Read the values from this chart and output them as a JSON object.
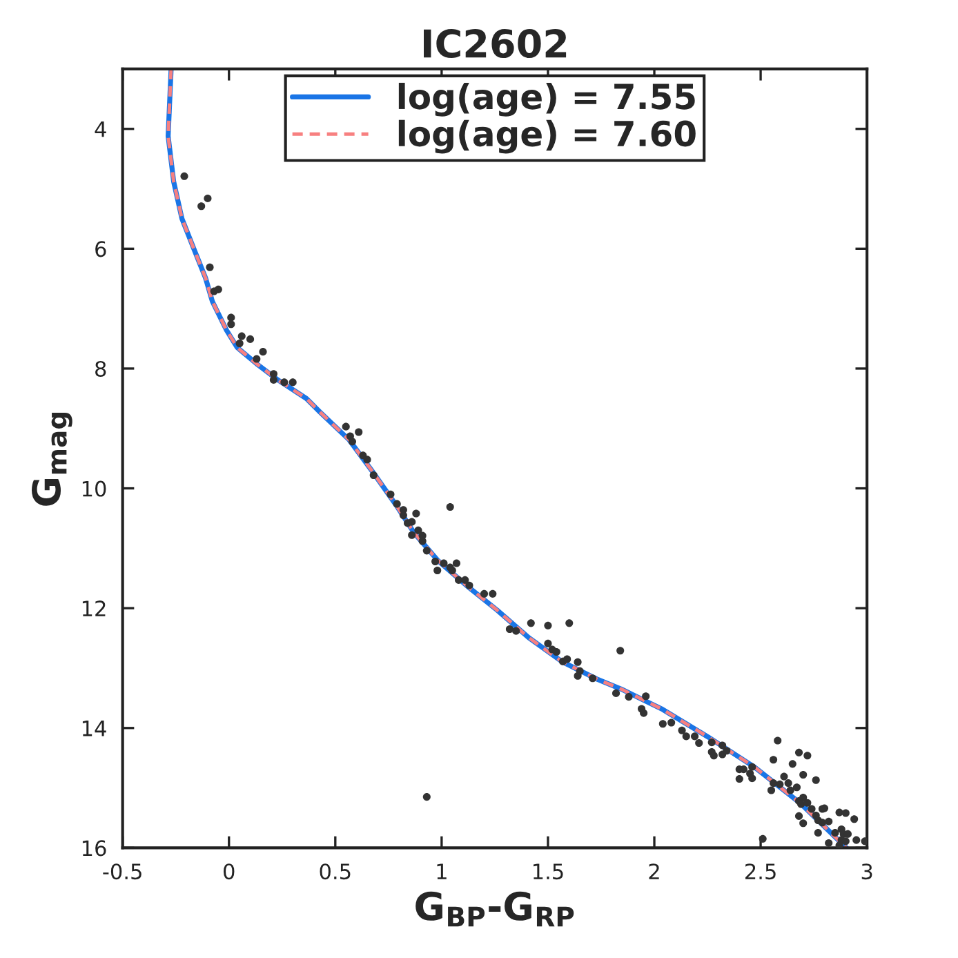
{
  "chart_data": {
    "type": "scatter",
    "title": "IC2602",
    "xlabel": "G$_{BP}$-G$_{RP}$",
    "ylabel": "G$_{mag}$",
    "xlim": [
      -0.5,
      3
    ],
    "ylim": [
      16,
      3
    ],
    "xticks": [
      {
        "value": -0.5,
        "label": "-0.5"
      },
      0,
      0.5,
      1,
      1.5,
      2,
      2.5,
      3
    ],
    "yticks": [
      4,
      6,
      8,
      10,
      12,
      14,
      16
    ],
    "grid": false,
    "legend": "top",
    "series": [
      {
        "color": "#333333",
        "marker": "circle",
        "x": [
          -0.21,
          -0.13,
          -0.1,
          -0.09,
          -0.07,
          -0.05,
          0.01,
          0.01,
          0.06,
          0.1,
          0.05,
          0.13,
          0.16,
          0.21,
          0.21,
          0.26,
          0.3,
          0.55,
          0.61,
          0.57,
          0.58,
          0.63,
          0.65,
          0.68,
          0.76,
          0.79,
          0.82,
          0.88,
          0.82,
          0.86,
          0.84,
          0.89,
          0.91,
          0.86,
          0.91,
          1.04,
          0.93,
          0.97,
          1.01,
          1.07,
          0.98,
          1.05,
          1.04,
          1.08,
          1.11,
          1.13,
          1.2,
          1.24,
          1.32,
          1.35,
          1.42,
          1.5,
          1.6,
          1.5,
          1.52,
          1.54,
          1.57,
          1.59,
          1.64,
          1.65,
          1.64,
          1.71,
          1.84,
          1.82,
          1.88,
          1.96,
          1.94,
          1.95,
          2.04,
          2.08,
          2.13,
          2.15,
          2.19,
          2.21,
          2.27,
          2.32,
          2.27,
          2.28,
          2.32,
          2.34,
          2.4,
          2.42,
          2.4,
          2.46,
          2.45,
          2.46,
          2.58,
          2.56,
          2.56,
          2.59,
          2.55,
          2.61,
          2.63,
          2.65,
          2.68,
          2.72,
          2.7,
          2.64,
          2.67,
          2.76,
          2.7,
          2.68,
          2.69,
          2.72,
          2.68,
          2.7,
          2.74,
          2.76,
          2.79,
          2.8,
          2.77,
          2.79,
          2.82,
          2.77,
          2.82,
          2.87,
          2.9,
          2.94,
          2.85,
          2.88,
          2.89,
          2.91,
          2.88,
          2.9,
          2.95,
          2.99,
          2.51,
          2.87,
          0.93
        ],
        "values": [
          4.79,
          5.29,
          5.16,
          6.31,
          6.71,
          6.68,
          7.15,
          7.26,
          7.46,
          7.51,
          7.58,
          7.84,
          7.72,
          8.09,
          8.19,
          8.23,
          8.23,
          8.97,
          9.06,
          9.13,
          9.22,
          9.45,
          9.52,
          9.78,
          10.1,
          10.26,
          10.36,
          10.42,
          10.45,
          10.56,
          10.58,
          10.7,
          10.79,
          10.78,
          10.88,
          10.31,
          11.04,
          11.22,
          11.25,
          11.25,
          11.37,
          11.37,
          11.32,
          11.53,
          11.53,
          11.62,
          11.76,
          11.76,
          12.35,
          12.38,
          12.25,
          12.29,
          12.25,
          12.59,
          12.69,
          12.73,
          12.89,
          12.85,
          12.9,
          13.05,
          13.13,
          13.17,
          12.71,
          13.42,
          13.48,
          13.47,
          13.68,
          13.75,
          13.93,
          13.91,
          14.04,
          14.14,
          14.14,
          14.25,
          14.24,
          14.29,
          14.4,
          14.46,
          14.44,
          14.38,
          14.69,
          14.69,
          14.85,
          14.65,
          14.76,
          14.84,
          14.21,
          14.53,
          14.92,
          14.94,
          15.04,
          14.81,
          14.92,
          14.6,
          14.41,
          14.46,
          14.78,
          15.04,
          14.99,
          14.87,
          15.16,
          15.22,
          15.27,
          15.25,
          15.47,
          15.59,
          15.35,
          15.46,
          15.35,
          15.34,
          15.54,
          15.58,
          15.56,
          15.75,
          15.92,
          15.41,
          15.42,
          15.52,
          15.75,
          15.69,
          15.77,
          15.77,
          15.87,
          15.89,
          15.87,
          15.89,
          15.85,
          15.96,
          15.15
        ]
      },
      {
        "type": "line",
        "name": "log(age) = 7.55",
        "color": "#1a75e6",
        "line_style": "solid",
        "marker": "none",
        "x": [
          -0.272,
          -0.286,
          -0.26,
          -0.221,
          -0.162,
          -0.11,
          -0.078,
          -0.013,
          0.039,
          0.13,
          0.234,
          0.364,
          0.429,
          0.565,
          0.675,
          0.786,
          0.87,
          0.981,
          1.13,
          1.26,
          1.409,
          1.565,
          1.734,
          1.844,
          2.039,
          2.253,
          2.474,
          2.688,
          2.903
        ],
        "values": [
          3.0,
          4.12,
          4.88,
          5.5,
          6.03,
          6.49,
          6.88,
          7.35,
          7.65,
          7.92,
          8.2,
          8.5,
          8.73,
          9.19,
          9.72,
          10.28,
          10.74,
          11.2,
          11.66,
          12.03,
          12.49,
          12.89,
          13.19,
          13.35,
          13.69,
          14.15,
          14.66,
          15.26,
          16.0
        ]
      },
      {
        "type": "line",
        "name": "log(age) = 7.60",
        "color": "#f78080",
        "line_style": "dashed",
        "marker": "none",
        "x": [
          -0.272,
          -0.286,
          -0.26,
          -0.221,
          -0.162,
          -0.11,
          -0.078,
          -0.013,
          0.039,
          0.13,
          0.234,
          0.364,
          0.429,
          0.565,
          0.675,
          0.786,
          0.87,
          0.981,
          1.13,
          1.26,
          1.409,
          1.565,
          1.734,
          1.844,
          2.039,
          2.253,
          2.474,
          2.688,
          2.903
        ],
        "values": [
          3.0,
          4.12,
          4.88,
          5.5,
          6.03,
          6.49,
          6.88,
          7.35,
          7.65,
          7.92,
          8.2,
          8.5,
          8.73,
          9.19,
          9.72,
          10.28,
          10.74,
          11.2,
          11.66,
          12.03,
          12.49,
          12.89,
          13.19,
          13.35,
          13.69,
          14.15,
          14.66,
          15.26,
          16.0
        ]
      }
    ]
  }
}
